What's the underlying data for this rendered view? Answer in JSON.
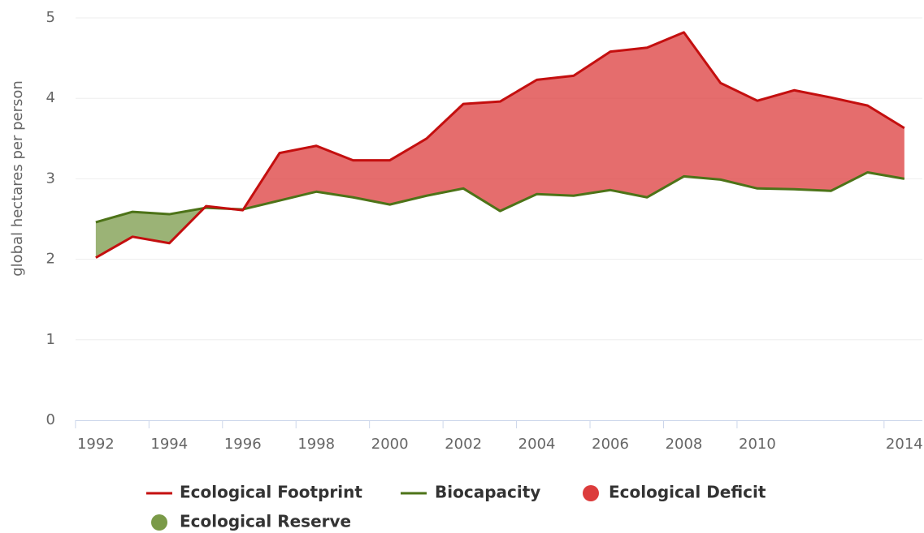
{
  "chart_data": {
    "type": "line",
    "y_label": "global hectares per person",
    "x": [
      1992,
      1993,
      1994,
      1995,
      1996,
      1997,
      1998,
      1999,
      2000,
      2001,
      2002,
      2003,
      2004,
      2005,
      2006,
      2007,
      2008,
      2009,
      2010,
      2011,
      2012,
      2013,
      2014
    ],
    "series": [
      {
        "name": "Ecological Footprint",
        "color": "#c40f0f",
        "values": [
          2.02,
          2.28,
          2.2,
          2.66,
          2.61,
          3.32,
          3.41,
          3.23,
          3.23,
          3.5,
          3.93,
          3.96,
          4.23,
          4.28,
          4.58,
          4.63,
          4.82,
          4.19,
          3.97,
          4.1,
          4.01,
          3.91,
          3.63
        ]
      },
      {
        "name": "Biocapacity",
        "color": "#4d7318",
        "values": [
          2.46,
          2.59,
          2.56,
          2.64,
          2.62,
          2.73,
          2.84,
          2.77,
          2.68,
          2.79,
          2.88,
          2.6,
          2.81,
          2.79,
          2.86,
          2.77,
          3.03,
          2.99,
          2.88,
          2.87,
          2.85,
          3.08,
          3.0
        ]
      }
    ],
    "areas": [
      {
        "name": "Ecological Deficit",
        "color": "#dc3c3c"
      },
      {
        "name": "Ecological Reserve",
        "color": "#7a9a48"
      }
    ],
    "xlim": [
      1991.45,
      2014.49
    ],
    "xticks": [
      1992,
      1994,
      1996,
      1998,
      2000,
      2002,
      2004,
      2006,
      2008,
      2010,
      2014
    ],
    "ylim": [
      0,
      5
    ],
    "yticks": [
      0,
      1,
      2,
      3,
      4,
      5
    ],
    "grid": true
  }
}
